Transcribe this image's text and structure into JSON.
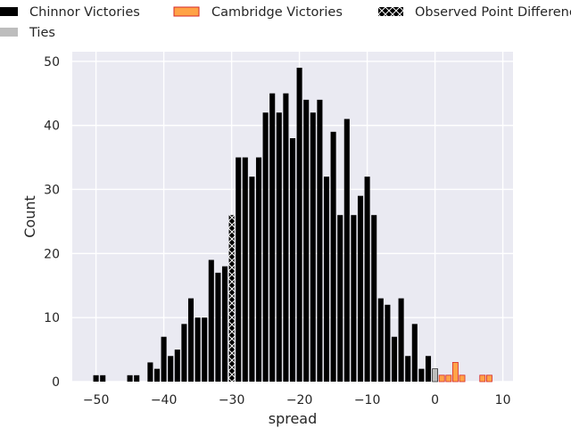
{
  "chart_data": {
    "type": "bar",
    "title": "",
    "xlabel": "spread",
    "ylabel": "Count",
    "xlim": [
      -53.5,
      11.5
    ],
    "ylim": [
      0,
      51.5
    ],
    "xticks": [
      -50,
      -40,
      -30,
      -20,
      -10,
      0,
      10
    ],
    "xtick_labels": [
      "−50",
      "−40",
      "−30",
      "−20",
      "−10",
      "0",
      "10"
    ],
    "yticks": [
      0,
      10,
      20,
      30,
      40,
      50
    ],
    "ytick_labels": [
      "0",
      "10",
      "20",
      "30",
      "40",
      "50"
    ],
    "grid": true,
    "legend_position": "top",
    "bar_width": 0.8,
    "series": [
      {
        "name": "Chinnor Victories",
        "color": "#000000",
        "x": [
          -50,
          -49,
          -45,
          -44,
          -42,
          -41,
          -40,
          -39,
          -38,
          -37,
          -36,
          -35,
          -34,
          -33,
          -32,
          -31,
          -29,
          -28,
          -27,
          -26,
          -25,
          -24,
          -23,
          -22,
          -21,
          -20,
          -19,
          -18,
          -17,
          -16,
          -15,
          -14,
          -13,
          -12,
          -11,
          -10,
          -9,
          -8,
          -7,
          -6,
          -5,
          -4,
          -3,
          -2,
          -1
        ],
        "values": [
          1,
          1,
          1,
          1,
          3,
          2,
          7,
          4,
          5,
          9,
          13,
          10,
          10,
          19,
          17,
          18,
          35,
          35,
          32,
          35,
          42,
          45,
          42,
          45,
          38,
          49,
          44,
          42,
          44,
          32,
          39,
          26,
          41,
          26,
          29,
          32,
          26,
          13,
          12,
          7,
          13,
          4,
          9,
          2,
          4
        ]
      },
      {
        "name": "Ties",
        "color": "#bdbdbd",
        "x": [
          0
        ],
        "values": [
          2
        ]
      },
      {
        "name": "Cambridge Victories",
        "color": "#ffa347",
        "edge": "#d62728",
        "x": [
          1,
          2,
          3,
          4,
          7,
          8
        ],
        "values": [
          1,
          1,
          3,
          1,
          1,
          1
        ]
      },
      {
        "name": "Observed Point Difference",
        "color": "#000000",
        "hatch": "x",
        "x": [
          -30
        ],
        "values": [
          26
        ]
      }
    ]
  }
}
